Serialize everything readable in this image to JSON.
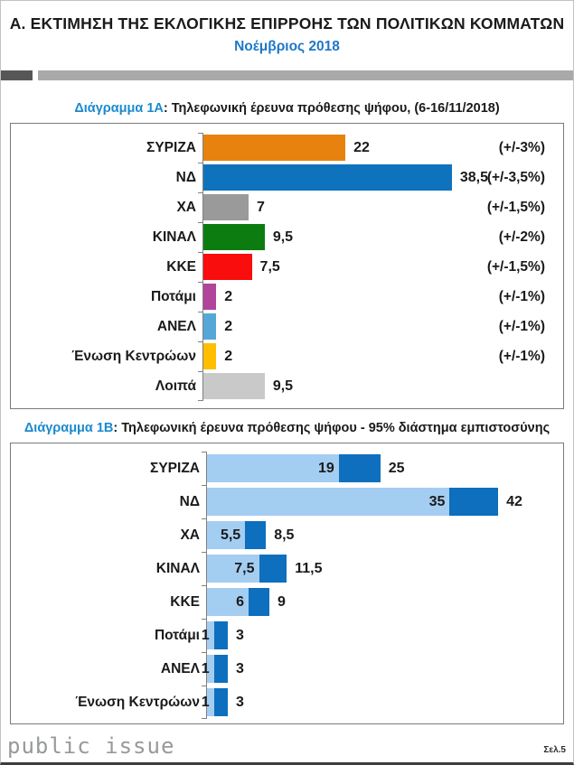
{
  "header": {
    "title": "Α. ΕΚΤΙΜΗΣΗ ΤΗΣ ΕΚΛΟΓΙΚΗΣ ΕΠΙΡΡΟΗΣ ΤΩΝ ΠΟΛΙΤΙΚΩΝ ΚΟΜΜΑΤΩΝ",
    "subtitle": "Νοέμβριος 2018"
  },
  "section_a": {
    "label": "Διάγραμμα 1Α",
    "title": ": Τηλεφωνική έρευνα πρόθεσης ψήφου,  (6-16/11/2018)"
  },
  "section_b": {
    "label": "Διάγραμμα 1Β",
    "title": ": Τηλεφωνική έρευνα πρόθεσης ψήφου - 95% διάστημα εμπιστοσύνης"
  },
  "footer": {
    "logo": "public issue",
    "page_number": "Σελ.5"
  },
  "colors": {
    "heading_blue": "#1b8ad0",
    "subtitle_blue": "#1e78c8",
    "range_light_blue": "#a4cdf2",
    "range_dark_blue": "#0d6fbd",
    "divider_dark": "#575757",
    "divider_light": "#a9a9a9"
  },
  "chart_data": [
    {
      "type": "bar",
      "orientation": "horizontal",
      "title": "Διάγραμμα 1Α: Τηλεφωνική έρευνα πρόθεσης ψήφου, (6-16/11/2018)",
      "categories": [
        "ΣΥΡΙΖΑ",
        "ΝΔ",
        "ΧΑ",
        "ΚΙΝΑΛ",
        "ΚΚΕ",
        "Ποτάμι",
        "ΑΝΕΛ",
        "Ένωση Κεντρώων",
        "Λοιπά"
      ],
      "values": [
        22,
        38.5,
        7,
        9.5,
        7.5,
        2,
        2,
        2,
        9.5
      ],
      "value_labels": [
        "22",
        "38,5",
        "7",
        "9,5",
        "7,5",
        "2",
        "2",
        "2",
        "9,5"
      ],
      "bar_colors": [
        "#e8820e",
        "#0f72bd",
        "#9a9a9a",
        "#0c7c10",
        "#f90d0d",
        "#b0459b",
        "#55a7d8",
        "#ffbe00",
        "#c9c9c9"
      ],
      "margins_of_error": [
        "(+/-3%)",
        "(+/-3,5%)",
        "(+/-1,5%)",
        "(+/-2%)",
        "(+/-1,5%)",
        "(+/-1%)",
        "(+/-1%)",
        "(+/-1%)",
        ""
      ],
      "xlim": [
        0,
        56
      ],
      "grid": false,
      "legend": false
    },
    {
      "type": "bar",
      "subtype": "range",
      "orientation": "horizontal",
      "title": "Διάγραμμα 1Β: Τηλεφωνική έρευνα πρόθεσης ψήφου - 95% διάστημα εμπιστοσύνης",
      "categories": [
        "ΣΥΡΙΖΑ",
        "ΝΔ",
        "ΧΑ",
        "ΚΙΝΑΛ",
        "ΚΚΕ",
        "Ποτάμι",
        "ΑΝΕΛ",
        "Ένωση Κεντρώων"
      ],
      "series": [
        {
          "name": "lower-bound",
          "values": [
            19,
            35,
            5.5,
            7.5,
            6,
            1,
            1,
            1
          ],
          "labels": [
            "19",
            "35",
            "5,5",
            "7,5",
            "6",
            "1",
            "1",
            "1"
          ],
          "color": "#a4cdf2"
        },
        {
          "name": "upper-bound",
          "values": [
            25,
            42,
            8.5,
            11.5,
            9,
            3,
            3,
            3
          ],
          "labels": [
            "25",
            "42",
            "8,5",
            "11,5",
            "9",
            "3",
            "3",
            "3"
          ],
          "color": "#0d6fbd"
        }
      ],
      "xlim": [
        0,
        52
      ],
      "grid": false,
      "legend": false
    }
  ]
}
